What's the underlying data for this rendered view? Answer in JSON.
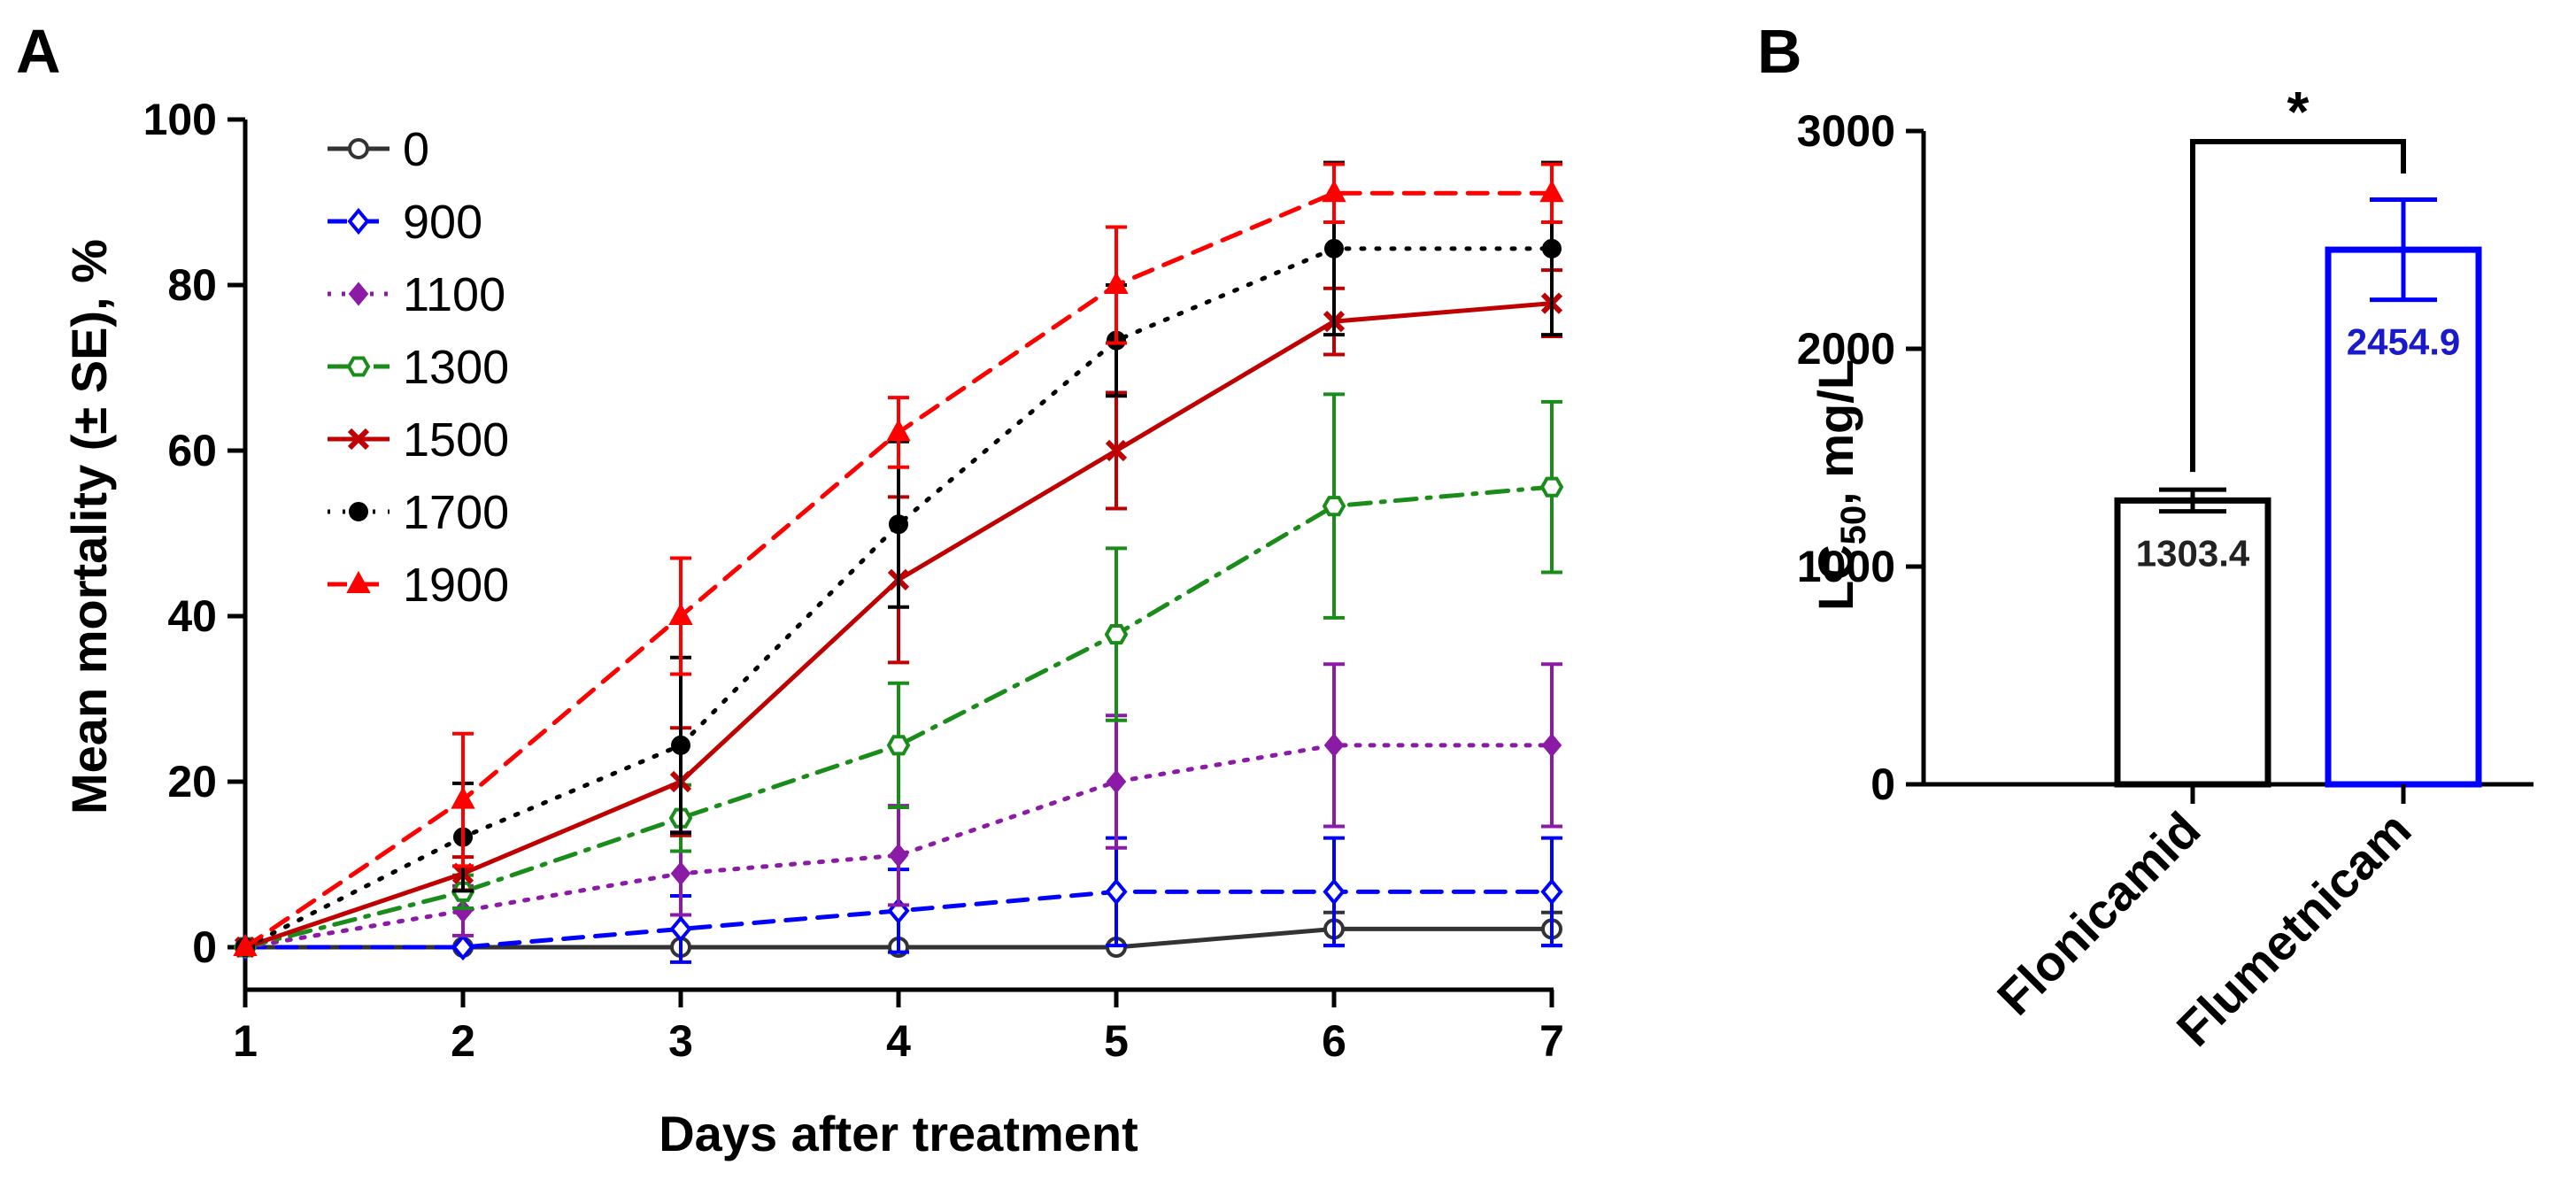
{
  "panels": {
    "a": "A",
    "b": "B"
  },
  "chart_data": [
    {
      "type": "line",
      "xlabel": "Days after treatment",
      "ylabel": "Mean mortality (± SE), %",
      "xlim": [
        1,
        7
      ],
      "ylim": [
        0,
        100
      ],
      "xticks": [
        "1",
        "2",
        "3",
        "4",
        "5",
        "6",
        "7"
      ],
      "yticks": [
        "0",
        "20",
        "40",
        "60",
        "80",
        "100"
      ],
      "grid": false,
      "legend_position": "top-left",
      "x": [
        1,
        2,
        3,
        4,
        5,
        6,
        7
      ],
      "series": [
        {
          "name": "0",
          "color": "#333333",
          "dash": "solid",
          "marker": "open-circle",
          "values": [
            0,
            0,
            0,
            0,
            0,
            2.2,
            2.2
          ],
          "se": [
            0,
            0,
            0,
            0,
            0,
            2,
            2
          ]
        },
        {
          "name": "900",
          "color": "#0000ff",
          "dash": "dashed",
          "marker": "open-diamond",
          "values": [
            0,
            0,
            2.2,
            4.4,
            6.7,
            6.7,
            6.7
          ],
          "se": [
            0,
            0,
            4,
            5,
            6.5,
            6.5,
            6.5
          ]
        },
        {
          "name": "1100",
          "color": "#8b1aa6",
          "dash": "dotted",
          "marker": "filled-diamond",
          "values": [
            0,
            4.4,
            8.9,
            11.1,
            20.0,
            24.4,
            24.4
          ],
          "se": [
            0,
            3,
            5,
            6,
            8,
            9.8,
            9.8
          ]
        },
        {
          "name": "1300",
          "color": "#1a8c1a",
          "dash": "dash-dot",
          "marker": "open-hexagon",
          "values": [
            0,
            6.7,
            15.6,
            24.4,
            37.8,
            53.3,
            55.6
          ],
          "se": [
            0,
            2,
            4,
            7.5,
            10.4,
            13.5,
            10.3
          ]
        },
        {
          "name": "1500",
          "color": "#c00000",
          "dash": "solid",
          "marker": "cross",
          "values": [
            0,
            8.9,
            20.0,
            44.4,
            60.0,
            75.6,
            77.8
          ],
          "se": [
            0,
            2,
            6.5,
            10,
            7,
            4,
            4
          ]
        },
        {
          "name": "1700",
          "color": "#000000",
          "dash": "dotted-fine",
          "marker": "filled-circle",
          "values": [
            0,
            13.3,
            24.4,
            51.1,
            73.3,
            84.4,
            84.4
          ],
          "se": [
            0,
            6.5,
            10.6,
            10,
            6.7,
            10.4,
            10.4
          ]
        },
        {
          "name": "1900",
          "color": "#ff0000",
          "dash": "dashed",
          "marker": "filled-triangle",
          "values": [
            0,
            17.8,
            40.0,
            62.2,
            80.0,
            91.1,
            91.1
          ],
          "se": [
            0,
            8,
            7,
            4.2,
            7,
            3.5,
            3.5
          ]
        }
      ]
    },
    {
      "type": "bar",
      "xlabel": "",
      "ylabel": "LC50, mg/L",
      "ylabel_main": "LC",
      "ylabel_sub": "50",
      "ylabel_unit": ", mg/L",
      "ylim": [
        0,
        3000
      ],
      "yticks": [
        "0",
        "1000",
        "2000",
        "3000"
      ],
      "categories": [
        "Flonicamid",
        "Flumetnicam"
      ],
      "values": [
        1303.4,
        2454.9
      ],
      "value_labels": [
        "1303.4",
        "2454.9"
      ],
      "errors": [
        50,
        230
      ],
      "colors": [
        "#000000",
        "#0000ff"
      ],
      "label_colors": [
        "#222222",
        "#1a1acc"
      ],
      "significance": "*"
    }
  ]
}
